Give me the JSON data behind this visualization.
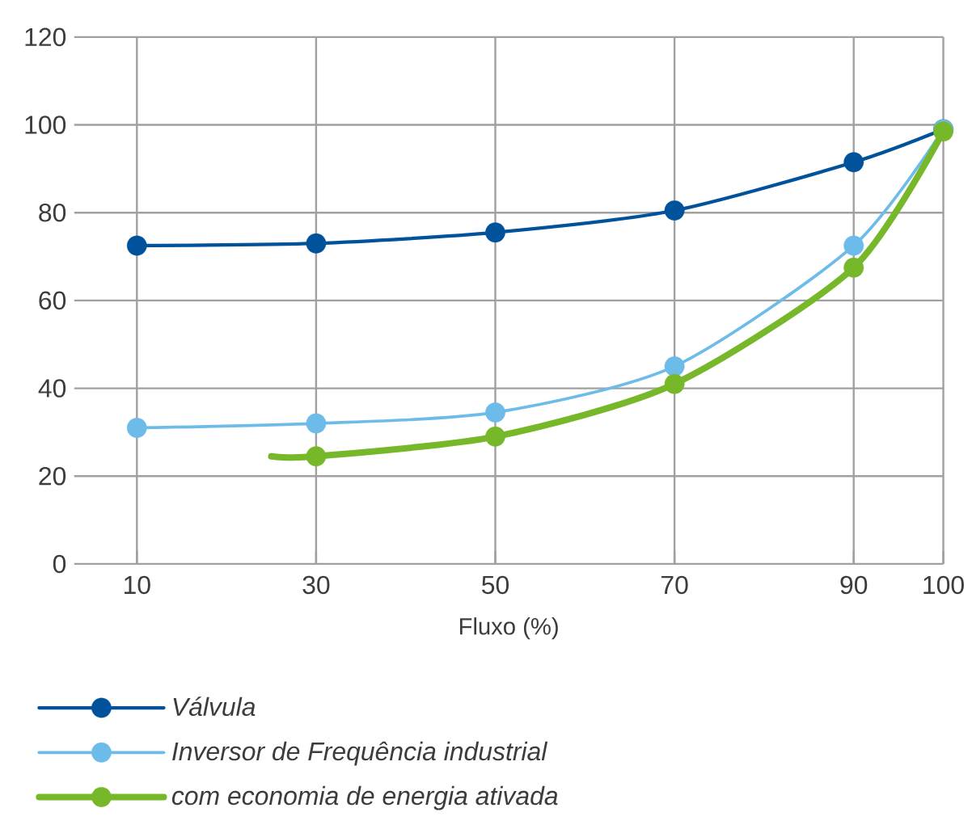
{
  "chart_data": {
    "type": "line",
    "xlabel": "Fluxo (%)",
    "x": [
      10,
      30,
      50,
      70,
      90,
      100
    ],
    "series": [
      {
        "name": "Válvula",
        "color": "#00529b",
        "values": [
          72.5,
          73,
          75.5,
          80.5,
          91.5,
          99
        ]
      },
      {
        "name": "Inversor de Frequência industrial",
        "color": "#6dbbe8",
        "values": [
          31,
          32,
          34.5,
          45,
          72.5,
          99
        ]
      },
      {
        "name": "com economia de energia ativada",
        "color": "#76b82a",
        "x": [
          25,
          30,
          50,
          70,
          90,
          100
        ],
        "values": [
          24.5,
          24.5,
          29,
          41,
          67.5,
          98.5
        ]
      }
    ],
    "xlim": [
      3,
      100
    ],
    "xticks": [
      10,
      30,
      50,
      70,
      90,
      100
    ],
    "ylim": [
      0,
      120
    ],
    "yticks": [
      0,
      20,
      40,
      60,
      80,
      100,
      120
    ],
    "grid": true,
    "legend": "bottom",
    "marker": "circle",
    "line_style": "solid"
  }
}
